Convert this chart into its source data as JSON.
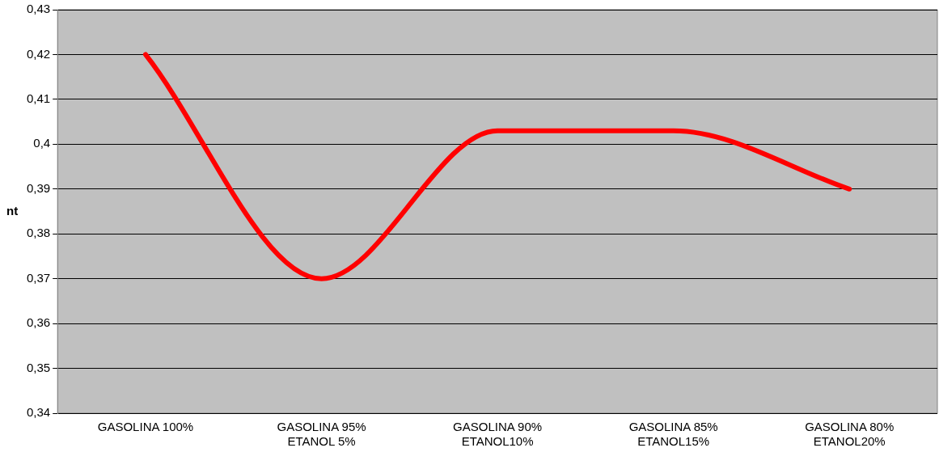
{
  "chart_data": {
    "type": "line",
    "ylabel": "nt",
    "categories": [
      "GASOLINA 100%",
      "GASOLINA 95%\nETANOL 5%",
      "GASOLINA 90%\nETANOL10%",
      "GASOLINA 85%\nETANOL15%",
      "GASOLINA 80%\nETANOL20%"
    ],
    "series": [
      {
        "color": "#ff0000",
        "values": [
          0.42,
          0.37,
          0.403,
          0.403,
          0.39
        ]
      }
    ],
    "ylim": [
      0.34,
      0.43
    ],
    "yticks": [
      {
        "value": 0.34,
        "label": "0,34"
      },
      {
        "value": 0.35,
        "label": "0,35"
      },
      {
        "value": 0.36,
        "label": "0,36"
      },
      {
        "value": 0.37,
        "label": "0,37"
      },
      {
        "value": 0.38,
        "label": "0,38"
      },
      {
        "value": 0.39,
        "label": "0,39"
      },
      {
        "value": 0.4,
        "label": "0,4"
      },
      {
        "value": 0.41,
        "label": "0,41"
      },
      {
        "value": 0.42,
        "label": "0,42"
      },
      {
        "value": 0.43,
        "label": "0,43"
      }
    ],
    "grid": "y",
    "legend": false,
    "marker": "none",
    "line_style": "solid"
  }
}
